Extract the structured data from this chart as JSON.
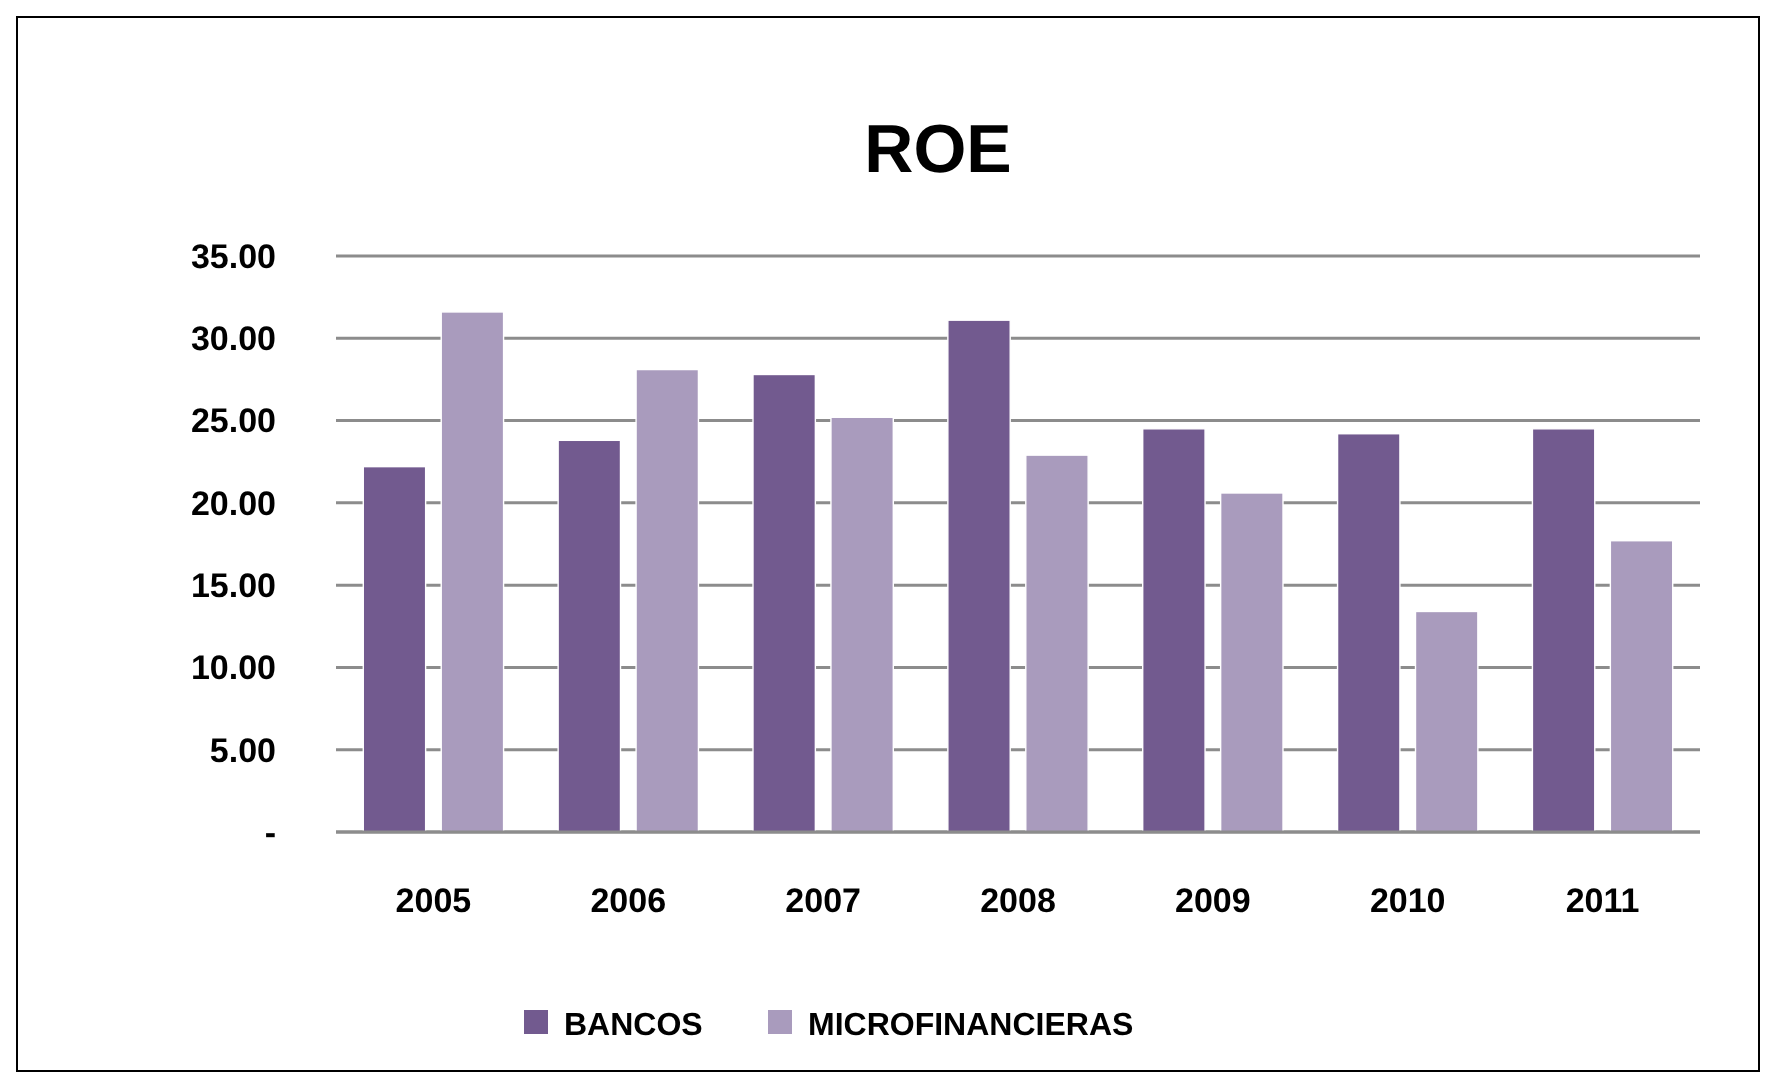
{
  "chart_data": {
    "type": "bar",
    "title": "ROE",
    "categories": [
      "2005",
      "2006",
      "2007",
      "2008",
      "2009",
      "2010",
      "2011"
    ],
    "series": [
      {
        "name": "BANCOS",
        "color": "#725a8f",
        "values": [
          22.2,
          23.8,
          27.8,
          31.1,
          24.5,
          24.2,
          24.5
        ]
      },
      {
        "name": "MICROFINANCIERAS",
        "color": "#a99bbd",
        "values": [
          31.6,
          28.1,
          25.2,
          22.9,
          20.6,
          13.4,
          17.7
        ]
      }
    ],
    "ylim": [
      0,
      35
    ],
    "yticks": [
      {
        "value": 0,
        "label": "-"
      },
      {
        "value": 5,
        "label": "5.00"
      },
      {
        "value": 10,
        "label": "10.00"
      },
      {
        "value": 15,
        "label": "15.00"
      },
      {
        "value": 20,
        "label": "20.00"
      },
      {
        "value": 25,
        "label": "25.00"
      },
      {
        "value": 30,
        "label": "30.00"
      },
      {
        "value": 35,
        "label": "35.00"
      }
    ],
    "grid": "y",
    "legend": "bottom"
  }
}
